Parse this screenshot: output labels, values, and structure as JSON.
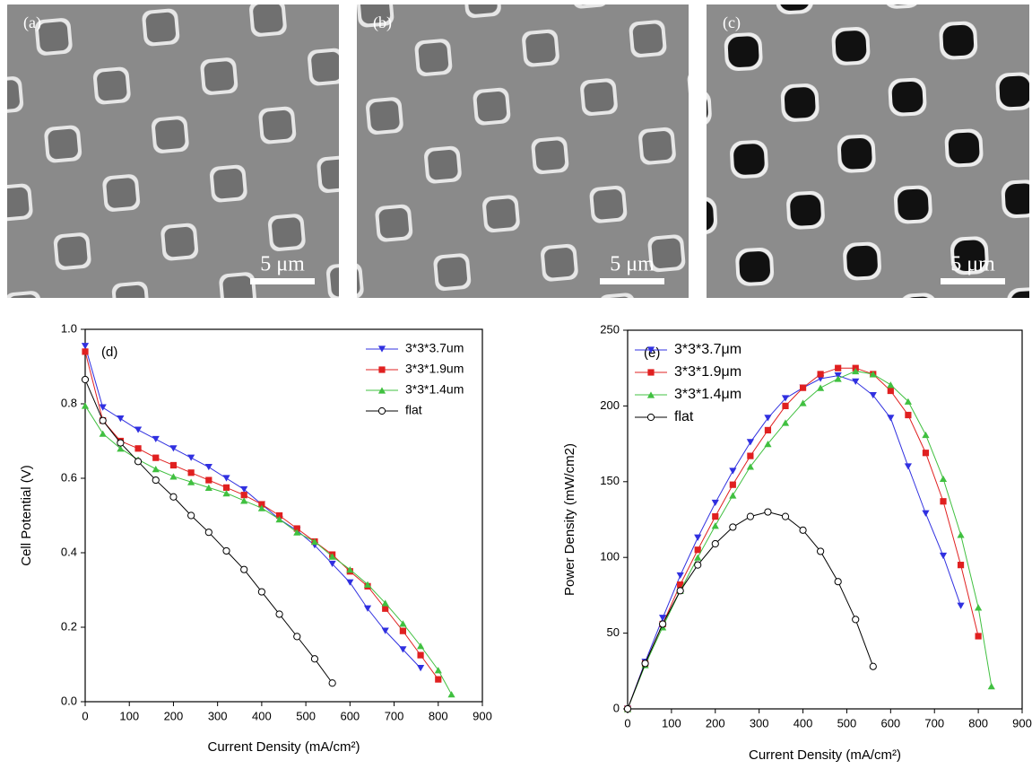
{
  "images": [
    {
      "label": "(a)",
      "scale": "5 μm"
    },
    {
      "label": "(b)",
      "scale": "5 μm"
    },
    {
      "label": "(c)",
      "scale": "5 μm"
    }
  ],
  "chart_data": [
    {
      "type": "line",
      "annotation": "(d)",
      "xlabel": "Current Density (mA/cm²)",
      "ylabel": "Cell Potential (V)",
      "xlim": [
        0,
        900
      ],
      "xticks": [
        0,
        100,
        200,
        300,
        400,
        500,
        600,
        700,
        800,
        900
      ],
      "ylim": [
        0,
        1
      ],
      "yticks": [
        {
          "value": 0,
          "label": "0.0"
        },
        0.2,
        0.4,
        0.6,
        0.8,
        {
          "value": 1,
          "label": "1.0"
        }
      ],
      "legend": "upper right",
      "series": [
        {
          "name": "3*3*3.7um",
          "color": "#3030e0",
          "marker": "triangle-down",
          "x": [
            0,
            40,
            80,
            120,
            160,
            200,
            240,
            280,
            320,
            360,
            400,
            440,
            480,
            520,
            560,
            600,
            640,
            680,
            720,
            760
          ],
          "values": [
            0.955,
            0.79,
            0.76,
            0.73,
            0.705,
            0.68,
            0.655,
            0.63,
            0.6,
            0.57,
            0.53,
            0.49,
            0.46,
            0.42,
            0.37,
            0.32,
            0.25,
            0.19,
            0.14,
            0.09
          ]
        },
        {
          "name": "3*3*1.9um",
          "color": "#e02020",
          "marker": "square",
          "x": [
            0,
            40,
            80,
            120,
            160,
            200,
            240,
            280,
            320,
            360,
            400,
            440,
            480,
            520,
            560,
            600,
            640,
            680,
            720,
            760,
            800
          ],
          "values": [
            0.94,
            0.755,
            0.7,
            0.68,
            0.655,
            0.635,
            0.615,
            0.595,
            0.575,
            0.555,
            0.53,
            0.5,
            0.465,
            0.43,
            0.395,
            0.35,
            0.31,
            0.25,
            0.19,
            0.125,
            0.06
          ]
        },
        {
          "name": "3*3*1.4um",
          "color": "#40c040",
          "marker": "triangle-up",
          "x": [
            0,
            40,
            80,
            120,
            160,
            200,
            240,
            280,
            320,
            360,
            400,
            440,
            480,
            520,
            560,
            600,
            640,
            680,
            720,
            760,
            800,
            830
          ],
          "values": [
            0.795,
            0.72,
            0.68,
            0.65,
            0.625,
            0.605,
            0.59,
            0.575,
            0.56,
            0.54,
            0.52,
            0.49,
            0.455,
            0.43,
            0.39,
            0.355,
            0.315,
            0.265,
            0.21,
            0.15,
            0.085,
            0.02
          ]
        },
        {
          "name": "flat",
          "color": "#000000",
          "marker": "circle",
          "x": [
            0,
            40,
            80,
            120,
            160,
            200,
            240,
            280,
            320,
            360,
            400,
            440,
            480,
            520,
            560
          ],
          "values": [
            0.865,
            0.755,
            0.695,
            0.645,
            0.595,
            0.55,
            0.5,
            0.455,
            0.405,
            0.355,
            0.295,
            0.235,
            0.175,
            0.115,
            0.05
          ]
        }
      ]
    },
    {
      "type": "line",
      "annotation": "(e)",
      "xlabel": "Current Density (mA/cm²)",
      "ylabel": "Power Density (mW/cm2)",
      "xlim": [
        0,
        900
      ],
      "xticks": [
        0,
        100,
        200,
        300,
        400,
        500,
        600,
        700,
        800,
        900
      ],
      "ylim": [
        0,
        250
      ],
      "yticks": [
        0,
        50,
        100,
        150,
        200,
        250
      ],
      "legend": "upper left",
      "series": [
        {
          "name": "3*3*3.7μm",
          "color": "#3030e0",
          "marker": "triangle-down",
          "x": [
            0,
            40,
            80,
            120,
            160,
            200,
            240,
            280,
            320,
            360,
            400,
            440,
            480,
            520,
            560,
            600,
            640,
            680,
            720,
            760
          ],
          "values": [
            0,
            31,
            60,
            88,
            113,
            136,
            157,
            176,
            192,
            205,
            212,
            218,
            220,
            216,
            207,
            192,
            160,
            129,
            101,
            68
          ]
        },
        {
          "name": "3*3*1.9μm",
          "color": "#e02020",
          "marker": "square",
          "x": [
            0,
            40,
            80,
            120,
            160,
            200,
            240,
            280,
            320,
            360,
            400,
            440,
            480,
            520,
            560,
            600,
            640,
            680,
            720,
            760,
            800
          ],
          "values": [
            0,
            30,
            56,
            82,
            105,
            127,
            148,
            167,
            184,
            200,
            212,
            221,
            225,
            225,
            221,
            210,
            194,
            169,
            137,
            95,
            48
          ]
        },
        {
          "name": "3*3*1.4μm",
          "color": "#40c040",
          "marker": "triangle-up",
          "x": [
            0,
            40,
            80,
            120,
            160,
            200,
            240,
            280,
            320,
            360,
            400,
            440,
            480,
            520,
            560,
            600,
            640,
            680,
            720,
            760,
            800,
            830
          ],
          "values": [
            0,
            29,
            54,
            78,
            100,
            121,
            141,
            160,
            175,
            189,
            202,
            212,
            218,
            223,
            221,
            214,
            203,
            181,
            152,
            115,
            67,
            15
          ]
        },
        {
          "name": "flat",
          "color": "#000000",
          "marker": "circle",
          "x": [
            0,
            40,
            80,
            120,
            160,
            200,
            240,
            280,
            320,
            360,
            400,
            440,
            480,
            520,
            560
          ],
          "values": [
            0,
            30,
            56,
            78,
            95,
            109,
            120,
            127,
            130,
            127,
            118,
            104,
            84,
            59,
            28
          ]
        }
      ]
    }
  ]
}
